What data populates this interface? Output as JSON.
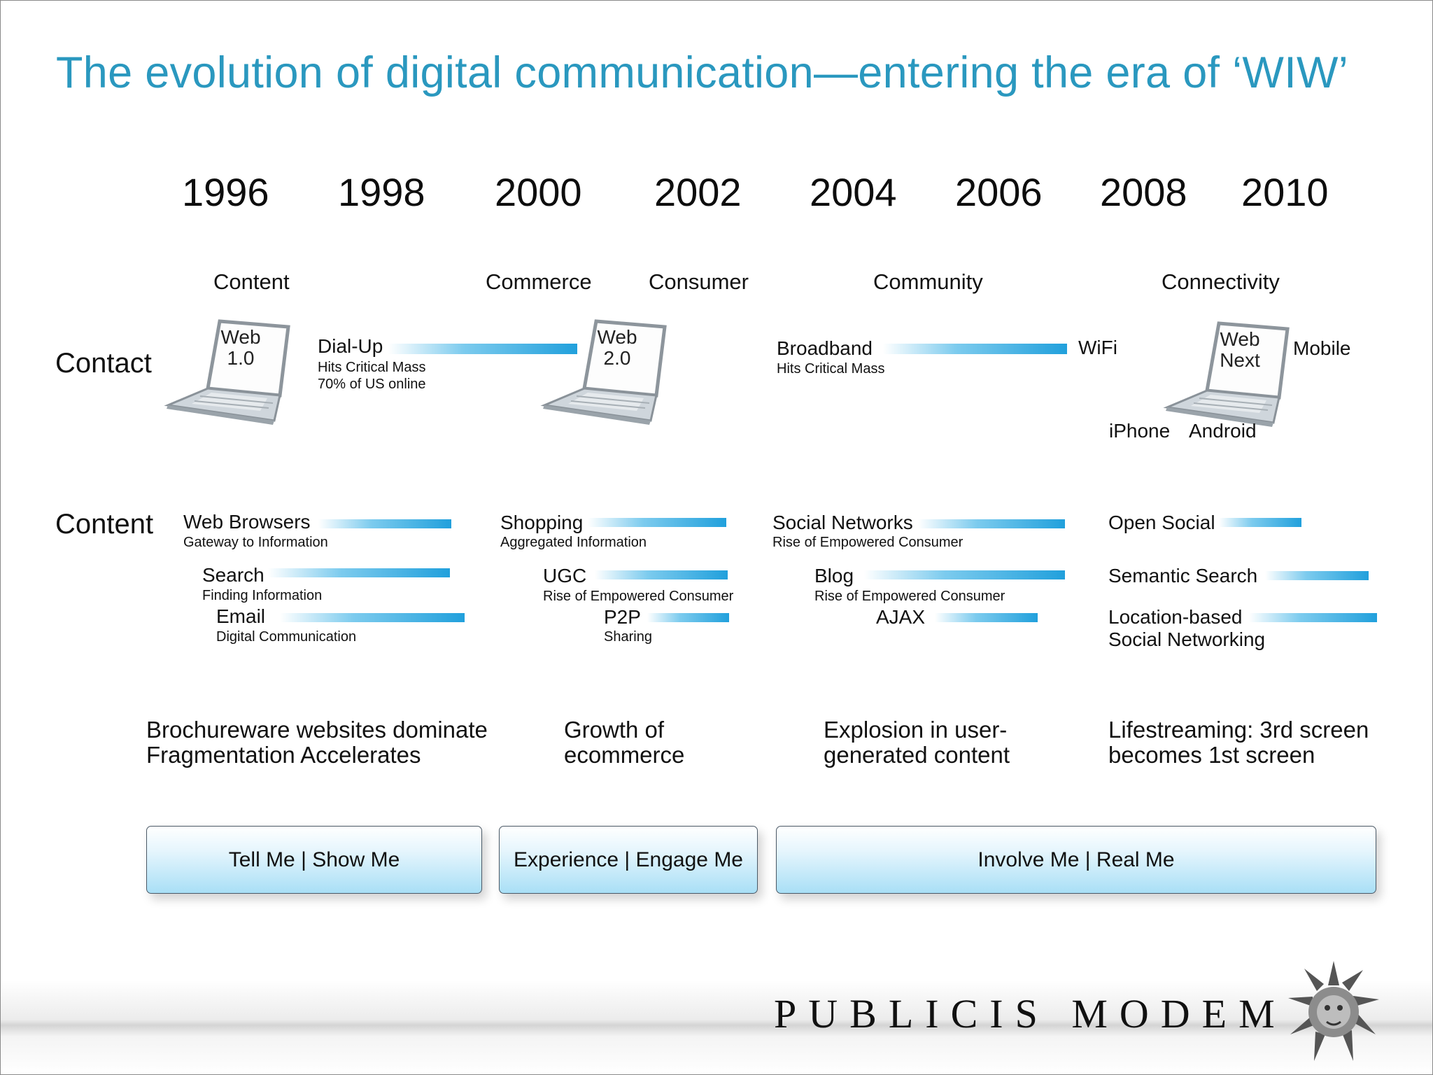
{
  "title": "The evolution of digital communication—entering the era of ‘WIW’",
  "years": [
    "1996",
    "1998",
    "2000",
    "2002",
    "2004",
    "2006",
    "2008",
    "2010"
  ],
  "eras": [
    "Content",
    "Commerce",
    "Consumer",
    "Community",
    "Connectivity"
  ],
  "rows": {
    "contact": "Contact",
    "content": "Content"
  },
  "contact": {
    "web1": [
      "Web",
      "1.0"
    ],
    "web2": [
      "Web",
      "2.0"
    ],
    "webnext": [
      "Web",
      "Next"
    ],
    "dialup": {
      "label": "Dial-Up",
      "sub1": "Hits Critical Mass",
      "sub2": "70% of US online"
    },
    "broadband": {
      "label": "Broadband",
      "sub": "Hits Critical Mass"
    },
    "wifi": "WiFi",
    "mobile": "Mobile",
    "iphone": "iPhone",
    "android": "Android"
  },
  "content": {
    "web_browsers": {
      "label": "Web Browsers",
      "sub": "Gateway to Information"
    },
    "search": {
      "label": "Search",
      "sub": "Finding Information"
    },
    "email": {
      "label": "Email",
      "sub": "Digital Communication"
    },
    "shopping": {
      "label": "Shopping",
      "sub": "Aggregated Information"
    },
    "ugc": {
      "label": "UGC",
      "sub": "Rise of Empowered Consumer"
    },
    "p2p": {
      "label": "P2P",
      "sub": "Sharing"
    },
    "social_networks": {
      "label": "Social Networks",
      "sub": "Rise of Empowered Consumer"
    },
    "blog": {
      "label": "Blog",
      "sub": "Rise of Empowered Consumer"
    },
    "ajax": {
      "label": "AJAX"
    },
    "open_social": {
      "label": "Open Social"
    },
    "semantic_search": {
      "label": "Semantic Search"
    },
    "location": {
      "line1": "Location-based",
      "line2": "Social Networking"
    }
  },
  "summaries": [
    [
      "Brochureware websites dominate",
      "Fragmentation Accelerates"
    ],
    [
      "Growth of",
      "ecommerce"
    ],
    [
      "Explosion in user-",
      "generated content"
    ],
    [
      "Lifestreaming: 3rd screen",
      "becomes 1st screen"
    ]
  ],
  "buttons": [
    "Tell Me | Show Me",
    "Experience | Engage Me",
    "Involve Me | Real Me"
  ],
  "logo": "PUBLICIS MODEM",
  "colors": {
    "title": "#2a98bf",
    "bar": "#21a0dc",
    "button_bottom": "#a9dff6"
  }
}
